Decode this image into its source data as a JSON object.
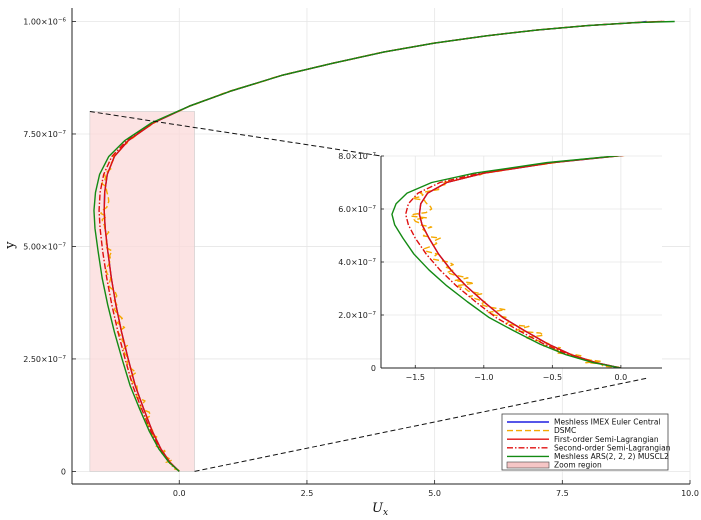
{
  "chart_data": [
    {
      "id": "main",
      "type": "line",
      "title": "",
      "xlabel": "U_x",
      "ylabel": "y",
      "xlim": [
        -2.1,
        10.0
      ],
      "ylim": [
        -2.8e-08,
        1.03e-06
      ],
      "x_ticks": [
        0.0,
        2.5,
        5.0,
        7.5,
        10.0
      ],
      "x_tick_labels": [
        "0.0",
        "2.5",
        "5.0",
        "7.5",
        "10.0"
      ],
      "y_ticks": [
        0,
        2.5e-07,
        5e-07,
        7.5e-07,
        1e-06
      ],
      "y_tick_labels": [
        {
          "base": "0",
          "exp": ""
        },
        {
          "base": "2.50×10",
          "exp": "−7"
        },
        {
          "base": "5.00×10",
          "exp": "−7"
        },
        {
          "base": "7.50×10",
          "exp": "−7"
        },
        {
          "base": "1.00×10",
          "exp": "−6"
        }
      ],
      "grid": true,
      "zoom_region": {
        "x": [
          -1.75,
          0.3
        ],
        "y": [
          0,
          8e-07
        ]
      },
      "series": [
        {
          "name": "Meshless IMEX Euler Central",
          "color": "#1f1fe0",
          "dash": "solid",
          "x": [
            0.0,
            -0.18,
            -0.36,
            -0.53,
            -0.7,
            -0.86,
            -1.0,
            -1.13,
            -1.24,
            -1.33,
            -1.4,
            -1.45,
            -1.47,
            -1.46,
            -1.41,
            -1.27,
            -1.0,
            -0.5,
            0.2,
            1.0,
            2.0,
            3.0,
            4.0,
            5.0,
            6.0,
            7.0,
            8.0,
            9.0,
            9.15
          ],
          "y": [
            0,
            2e-08,
            5e-08,
            9e-08,
            1.4e-07,
            1.9e-07,
            2.5e-07,
            3.1e-07,
            3.7e-07,
            4.3e-07,
            4.9e-07,
            5.4e-07,
            5.8e-07,
            6.2e-07,
            6.6e-07,
            7e-07,
            7.35e-07,
            7.75e-07,
            8.12e-07,
            8.45e-07,
            8.8e-07,
            9.07e-07,
            9.32e-07,
            9.52e-07,
            9.68e-07,
            9.81e-07,
            9.91e-07,
            9.98e-07,
            1e-06
          ]
        },
        {
          "name": "DSMC",
          "color": "#f5a800",
          "dash": "long-dash",
          "noisy": true,
          "x": [
            0.0,
            -0.18,
            -0.36,
            -0.53,
            -0.7,
            -0.86,
            -1.0,
            -1.13,
            -1.24,
            -1.33,
            -1.4,
            -1.45,
            -1.47,
            -1.46,
            -1.41,
            -1.27,
            -1.0,
            -0.5,
            0.2,
            1.0,
            2.0,
            3.0,
            4.0,
            5.0,
            6.0,
            7.0,
            8.0,
            9.0,
            9.4
          ],
          "y": [
            0,
            2e-08,
            5e-08,
            9e-08,
            1.4e-07,
            1.9e-07,
            2.5e-07,
            3.1e-07,
            3.7e-07,
            4.3e-07,
            4.9e-07,
            5.4e-07,
            5.8e-07,
            6.2e-07,
            6.6e-07,
            7e-07,
            7.35e-07,
            7.75e-07,
            8.12e-07,
            8.45e-07,
            8.8e-07,
            9.07e-07,
            9.32e-07,
            9.52e-07,
            9.68e-07,
            9.81e-07,
            9.91e-07,
            9.98e-07,
            1e-06
          ]
        },
        {
          "name": "First-order Semi-Lagrangian",
          "color": "#e01010",
          "dash": "solid",
          "x": [
            0.0,
            -0.18,
            -0.36,
            -0.53,
            -0.7,
            -0.86,
            -1.0,
            -1.13,
            -1.24,
            -1.33,
            -1.4,
            -1.45,
            -1.47,
            -1.46,
            -1.41,
            -1.27,
            -1.0,
            -0.5,
            0.2,
            1.0,
            2.0,
            3.0,
            4.0,
            5.0,
            6.0,
            7.0,
            8.0,
            9.0,
            9.45
          ],
          "y": [
            0,
            2e-08,
            5e-08,
            9e-08,
            1.4e-07,
            1.9e-07,
            2.5e-07,
            3.1e-07,
            3.7e-07,
            4.3e-07,
            4.9e-07,
            5.4e-07,
            5.8e-07,
            6.2e-07,
            6.6e-07,
            7e-07,
            7.35e-07,
            7.75e-07,
            8.12e-07,
            8.45e-07,
            8.8e-07,
            9.07e-07,
            9.32e-07,
            9.52e-07,
            9.68e-07,
            9.81e-07,
            9.91e-07,
            9.98e-07,
            1e-06
          ]
        },
        {
          "name": "Second-order Semi-Lagrangian",
          "color": "#e01010",
          "dash": "dash-dot",
          "x": [
            0.0,
            -0.19,
            -0.38,
            -0.56,
            -0.74,
            -0.91,
            -1.06,
            -1.2,
            -1.32,
            -1.42,
            -1.5,
            -1.55,
            -1.57,
            -1.55,
            -1.48,
            -1.32,
            -1.03,
            -0.52,
            0.2,
            1.0,
            2.0,
            3.0,
            4.0,
            5.0,
            6.0,
            7.0,
            8.0,
            9.0,
            9.5
          ],
          "y": [
            0,
            2e-08,
            5e-08,
            9e-08,
            1.4e-07,
            1.9e-07,
            2.5e-07,
            3.1e-07,
            3.7e-07,
            4.3e-07,
            4.9e-07,
            5.4e-07,
            5.8e-07,
            6.2e-07,
            6.6e-07,
            7e-07,
            7.35e-07,
            7.75e-07,
            8.12e-07,
            8.45e-07,
            8.8e-07,
            9.07e-07,
            9.32e-07,
            9.52e-07,
            9.68e-07,
            9.81e-07,
            9.91e-07,
            9.98e-07,
            1e-06
          ]
        },
        {
          "name": "Meshless ARS(2, 2, 2) MUSCL2",
          "color": "#138a13",
          "dash": "solid",
          "x": [
            0.0,
            -0.2,
            -0.4,
            -0.59,
            -0.78,
            -0.96,
            -1.12,
            -1.27,
            -1.4,
            -1.51,
            -1.59,
            -1.65,
            -1.67,
            -1.64,
            -1.56,
            -1.38,
            -1.07,
            -0.54,
            0.2,
            1.0,
            2.0,
            3.0,
            4.0,
            5.0,
            6.0,
            7.0,
            8.0,
            9.0,
            9.7
          ],
          "y": [
            0,
            2e-08,
            5e-08,
            9e-08,
            1.4e-07,
            1.9e-07,
            2.5e-07,
            3.1e-07,
            3.7e-07,
            4.3e-07,
            4.9e-07,
            5.4e-07,
            5.8e-07,
            6.2e-07,
            6.6e-07,
            7e-07,
            7.35e-07,
            7.75e-07,
            8.12e-07,
            8.45e-07,
            8.8e-07,
            9.07e-07,
            9.32e-07,
            9.52e-07,
            9.68e-07,
            9.81e-07,
            9.91e-07,
            9.98e-07,
            1e-06
          ]
        }
      ],
      "legend": {
        "placement": "bottom-right",
        "entries": [
          {
            "label": "Meshless IMEX Euler Central",
            "color": "#1f1fe0",
            "dash": "solid"
          },
          {
            "label": "DSMC",
            "color": "#f5a800",
            "dash": "long-dash"
          },
          {
            "label": "First-order Semi-Lagrangian",
            "color": "#e01010",
            "dash": "solid"
          },
          {
            "label": "Second-order Semi-Lagrangian",
            "color": "#e01010",
            "dash": "dash-dot"
          },
          {
            "label": "Meshless ARS(2, 2, 2) MUSCL2",
            "color": "#138a13",
            "dash": "solid"
          },
          {
            "label": "Zoom region",
            "color": "#f6c6c6",
            "dash": "box"
          }
        ]
      }
    },
    {
      "id": "inset",
      "type": "line",
      "title": "",
      "xlabel": "",
      "ylabel": "",
      "xlim": [
        -1.75,
        0.3
      ],
      "ylim": [
        0,
        8e-07
      ],
      "x_ticks": [
        -1.5,
        -1.0,
        -0.5,
        0.0
      ],
      "x_tick_labels": [
        "−1.5",
        "−1.0",
        "−0.5",
        "0.0"
      ],
      "y_ticks": [
        0,
        2e-07,
        4e-07,
        6e-07,
        8e-07
      ],
      "y_tick_labels": [
        {
          "base": "0",
          "exp": ""
        },
        {
          "base": "2.0×10",
          "exp": "−7"
        },
        {
          "base": "4.0×10",
          "exp": "−7"
        },
        {
          "base": "6.0×10",
          "exp": "−7"
        },
        {
          "base": "8.0×10",
          "exp": "−7"
        }
      ],
      "grid": true,
      "series_from": "main"
    }
  ]
}
